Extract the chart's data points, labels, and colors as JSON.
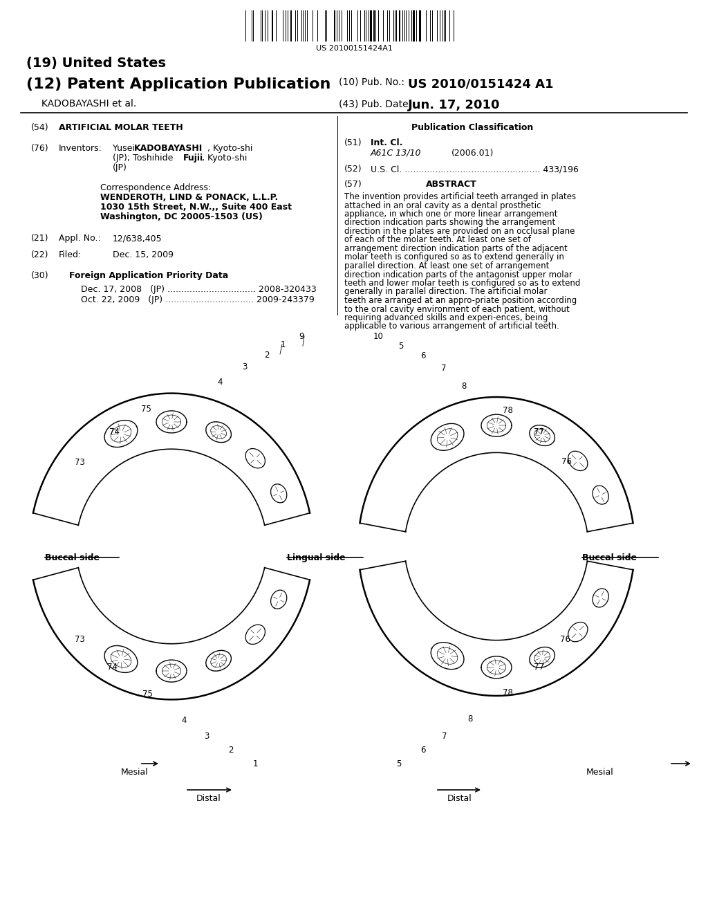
{
  "bg_color": "#ffffff",
  "barcode_number": "US 20100151424A1",
  "header1": "(19) United States",
  "header2_left": "(12) Patent Application Publication",
  "header2_right_label": "(10) Pub. No.:",
  "header2_right_val": "US 2010/0151424 A1",
  "header3_left": "     KADOBAYASHI et al.",
  "header3_right_label": "(43) Pub. Date:",
  "header3_right_val": "Jun. 17, 2010",
  "f54": "ARTIFICIAL MOLAR TEETH",
  "corr_title": "Correspondence Address:",
  "corr_firm": "WENDEROTH, LIND & PONACK, L.L.P.",
  "corr_addr1": "1030 15th Street, N.W.,, Suite 400 East",
  "corr_addr2": "Washington, DC 20005-1503 (US)",
  "f21_val": "12/638,405",
  "f22_val": "Dec. 15, 2009",
  "f30_priority": [
    "Dec. 17, 2008   (JP) ................................ 2008-320433",
    "Oct. 22, 2009   (JP) ................................ 2009-243379"
  ],
  "f51_class": "A61C 13/10",
  "f51_year": "(2006.01)",
  "f52": "U.S. Cl. ................................................. 433/196",
  "abstract": "The invention provides artificial teeth arranged in plates attached in an oral cavity as a dental prosthetic appliance, in which one or more linear arrangement direction indication parts showing the arrangement direction in the plates are provided on an occlusal plane of each of the molar teeth. At least one set of arrangement direction indication parts of the adjacent molar teeth is configured so as to extend generally in parallel direction. At least one set of arrangement direction indication parts of the antagonist upper molar teeth and lower molar teeth is configured so as to extend generally in parallel direction. The artificial molar teeth are arranged at an appro-priate position according to the oral cavity environment of each patient, without requiring advanced skills and experi-ences, being applicable to various arrangement of artificial teeth."
}
